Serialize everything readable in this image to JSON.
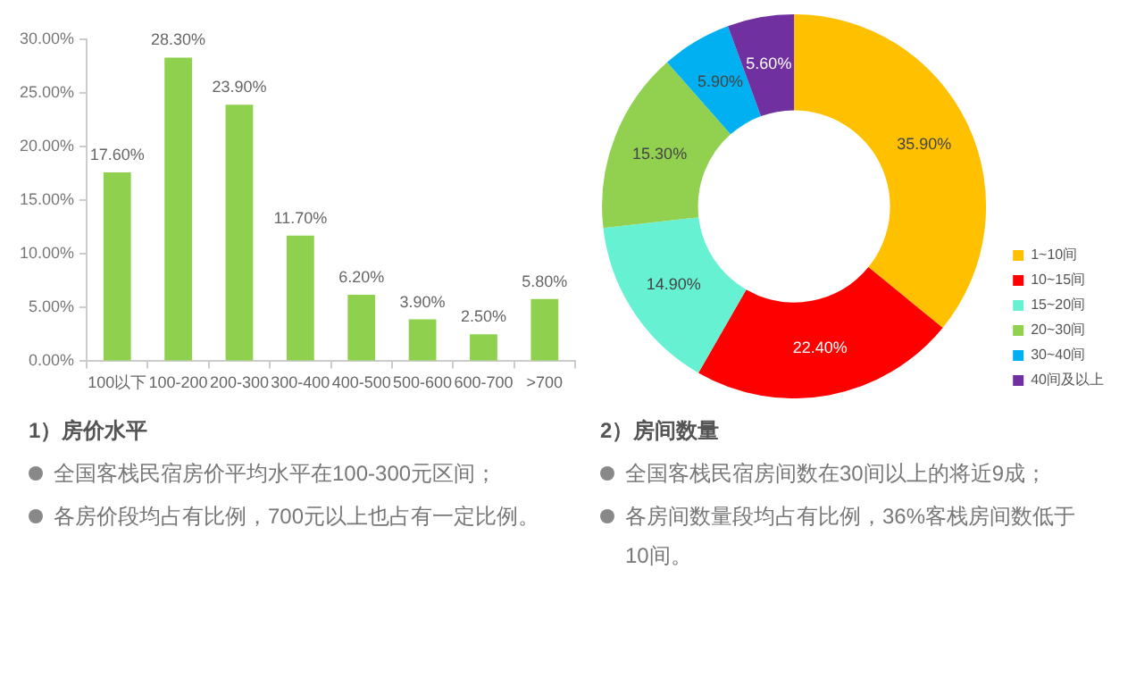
{
  "chart_data": [
    {
      "type": "bar",
      "title": "1）房价水平",
      "categories": [
        "100以下",
        "100-200",
        "200-300",
        "300-400",
        "400-500",
        "500-600",
        "600-700",
        ">700"
      ],
      "values": [
        17.6,
        28.3,
        23.9,
        11.7,
        6.2,
        3.9,
        2.5,
        5.8
      ],
      "color": "#8fd14f",
      "value_labels": [
        "17.60%",
        "28.30%",
        "23.90%",
        "11.70%",
        "6.20%",
        "3.90%",
        "2.50%",
        "5.80%"
      ],
      "ylim": [
        0,
        30
      ],
      "yticks": [
        {
          "value": 0,
          "label": "0.00%"
        },
        {
          "value": 5,
          "label": "5.00%"
        },
        {
          "value": 10,
          "label": "10.00%"
        },
        {
          "value": 15,
          "label": "15.00%"
        },
        {
          "value": 20,
          "label": "20.00%"
        },
        {
          "value": 25,
          "label": "25.00%"
        },
        {
          "value": 30,
          "label": "30.00%"
        }
      ],
      "grid": false,
      "legend": false,
      "annotations": [
        "全国客栈民宿房价平均水平在100-300元区间；",
        "各房价段均占有比例，700元以上也占有一定比例。"
      ]
    },
    {
      "type": "donut",
      "title": "2）房间数量",
      "categories": [
        "1~10间",
        "10~15间",
        "15~20间",
        "20~30间",
        "30~40间",
        "40间及以上"
      ],
      "values": [
        35.9,
        22.4,
        14.9,
        15.3,
        5.9,
        5.6
      ],
      "colors": [
        "#ffc000",
        "#ff0000",
        "#66f2d2",
        "#92d050",
        "#00b0f0",
        "#7030a0"
      ],
      "value_labels": [
        "35.90%",
        "22.40%",
        "14.90%",
        "15.30%",
        "5.90%",
        "5.60%"
      ],
      "legend": "bottom right",
      "annotations": [
        "全国客栈民宿房间数在30间以上的将近9成；",
        "各房间数量段均占有比例，36%客栈房间数低于10间。"
      ]
    }
  ]
}
